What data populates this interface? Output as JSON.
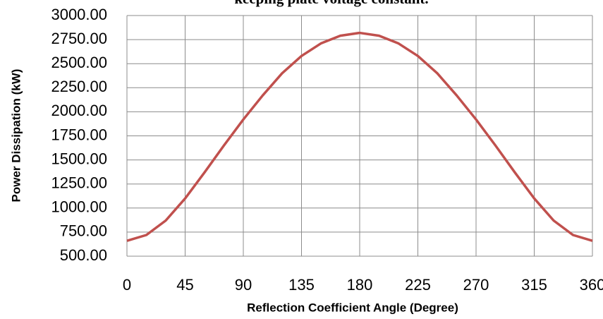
{
  "chart_data": {
    "type": "line",
    "title": "keeping plate voltage constant.",
    "x_label": "Reflection Coefficient Angle (Degree)",
    "y_label": "Power Dissipation  (kW)",
    "x": [
      0,
      15,
      30,
      45,
      60,
      75,
      90,
      105,
      120,
      135,
      150,
      165,
      180,
      195,
      210,
      225,
      240,
      255,
      270,
      285,
      300,
      315,
      330,
      345,
      360
    ],
    "series": [
      {
        "name": "Power Dissipation",
        "color": "#c0504d",
        "values": [
          660,
          720,
          870,
          1100,
          1370,
          1650,
          1920,
          2170,
          2400,
          2580,
          2710,
          2790,
          2820,
          2790,
          2710,
          2580,
          2400,
          2170,
          1920,
          1650,
          1370,
          1100,
          870,
          720,
          660
        ]
      }
    ],
    "xlim": [
      0,
      360
    ],
    "xticks": [
      0,
      45,
      90,
      135,
      180,
      225,
      270,
      315,
      360
    ],
    "ylim": [
      500,
      3000
    ],
    "yticks": [
      {
        "value": 500,
        "label": "500.00"
      },
      {
        "value": 750,
        "label": "750.00"
      },
      {
        "value": 1000,
        "label": "1000.00"
      },
      {
        "value": 1250,
        "label": "1250.00"
      },
      {
        "value": 1500,
        "label": "1500.00"
      },
      {
        "value": 1750,
        "label": "1750.00"
      },
      {
        "value": 2000,
        "label": "2000.00"
      },
      {
        "value": 2250,
        "label": "2250.00"
      },
      {
        "value": 2500,
        "label": "2500.00"
      },
      {
        "value": 2750,
        "label": "2750.00"
      },
      {
        "value": 3000,
        "label": "3000.00"
      }
    ],
    "grid": true
  }
}
